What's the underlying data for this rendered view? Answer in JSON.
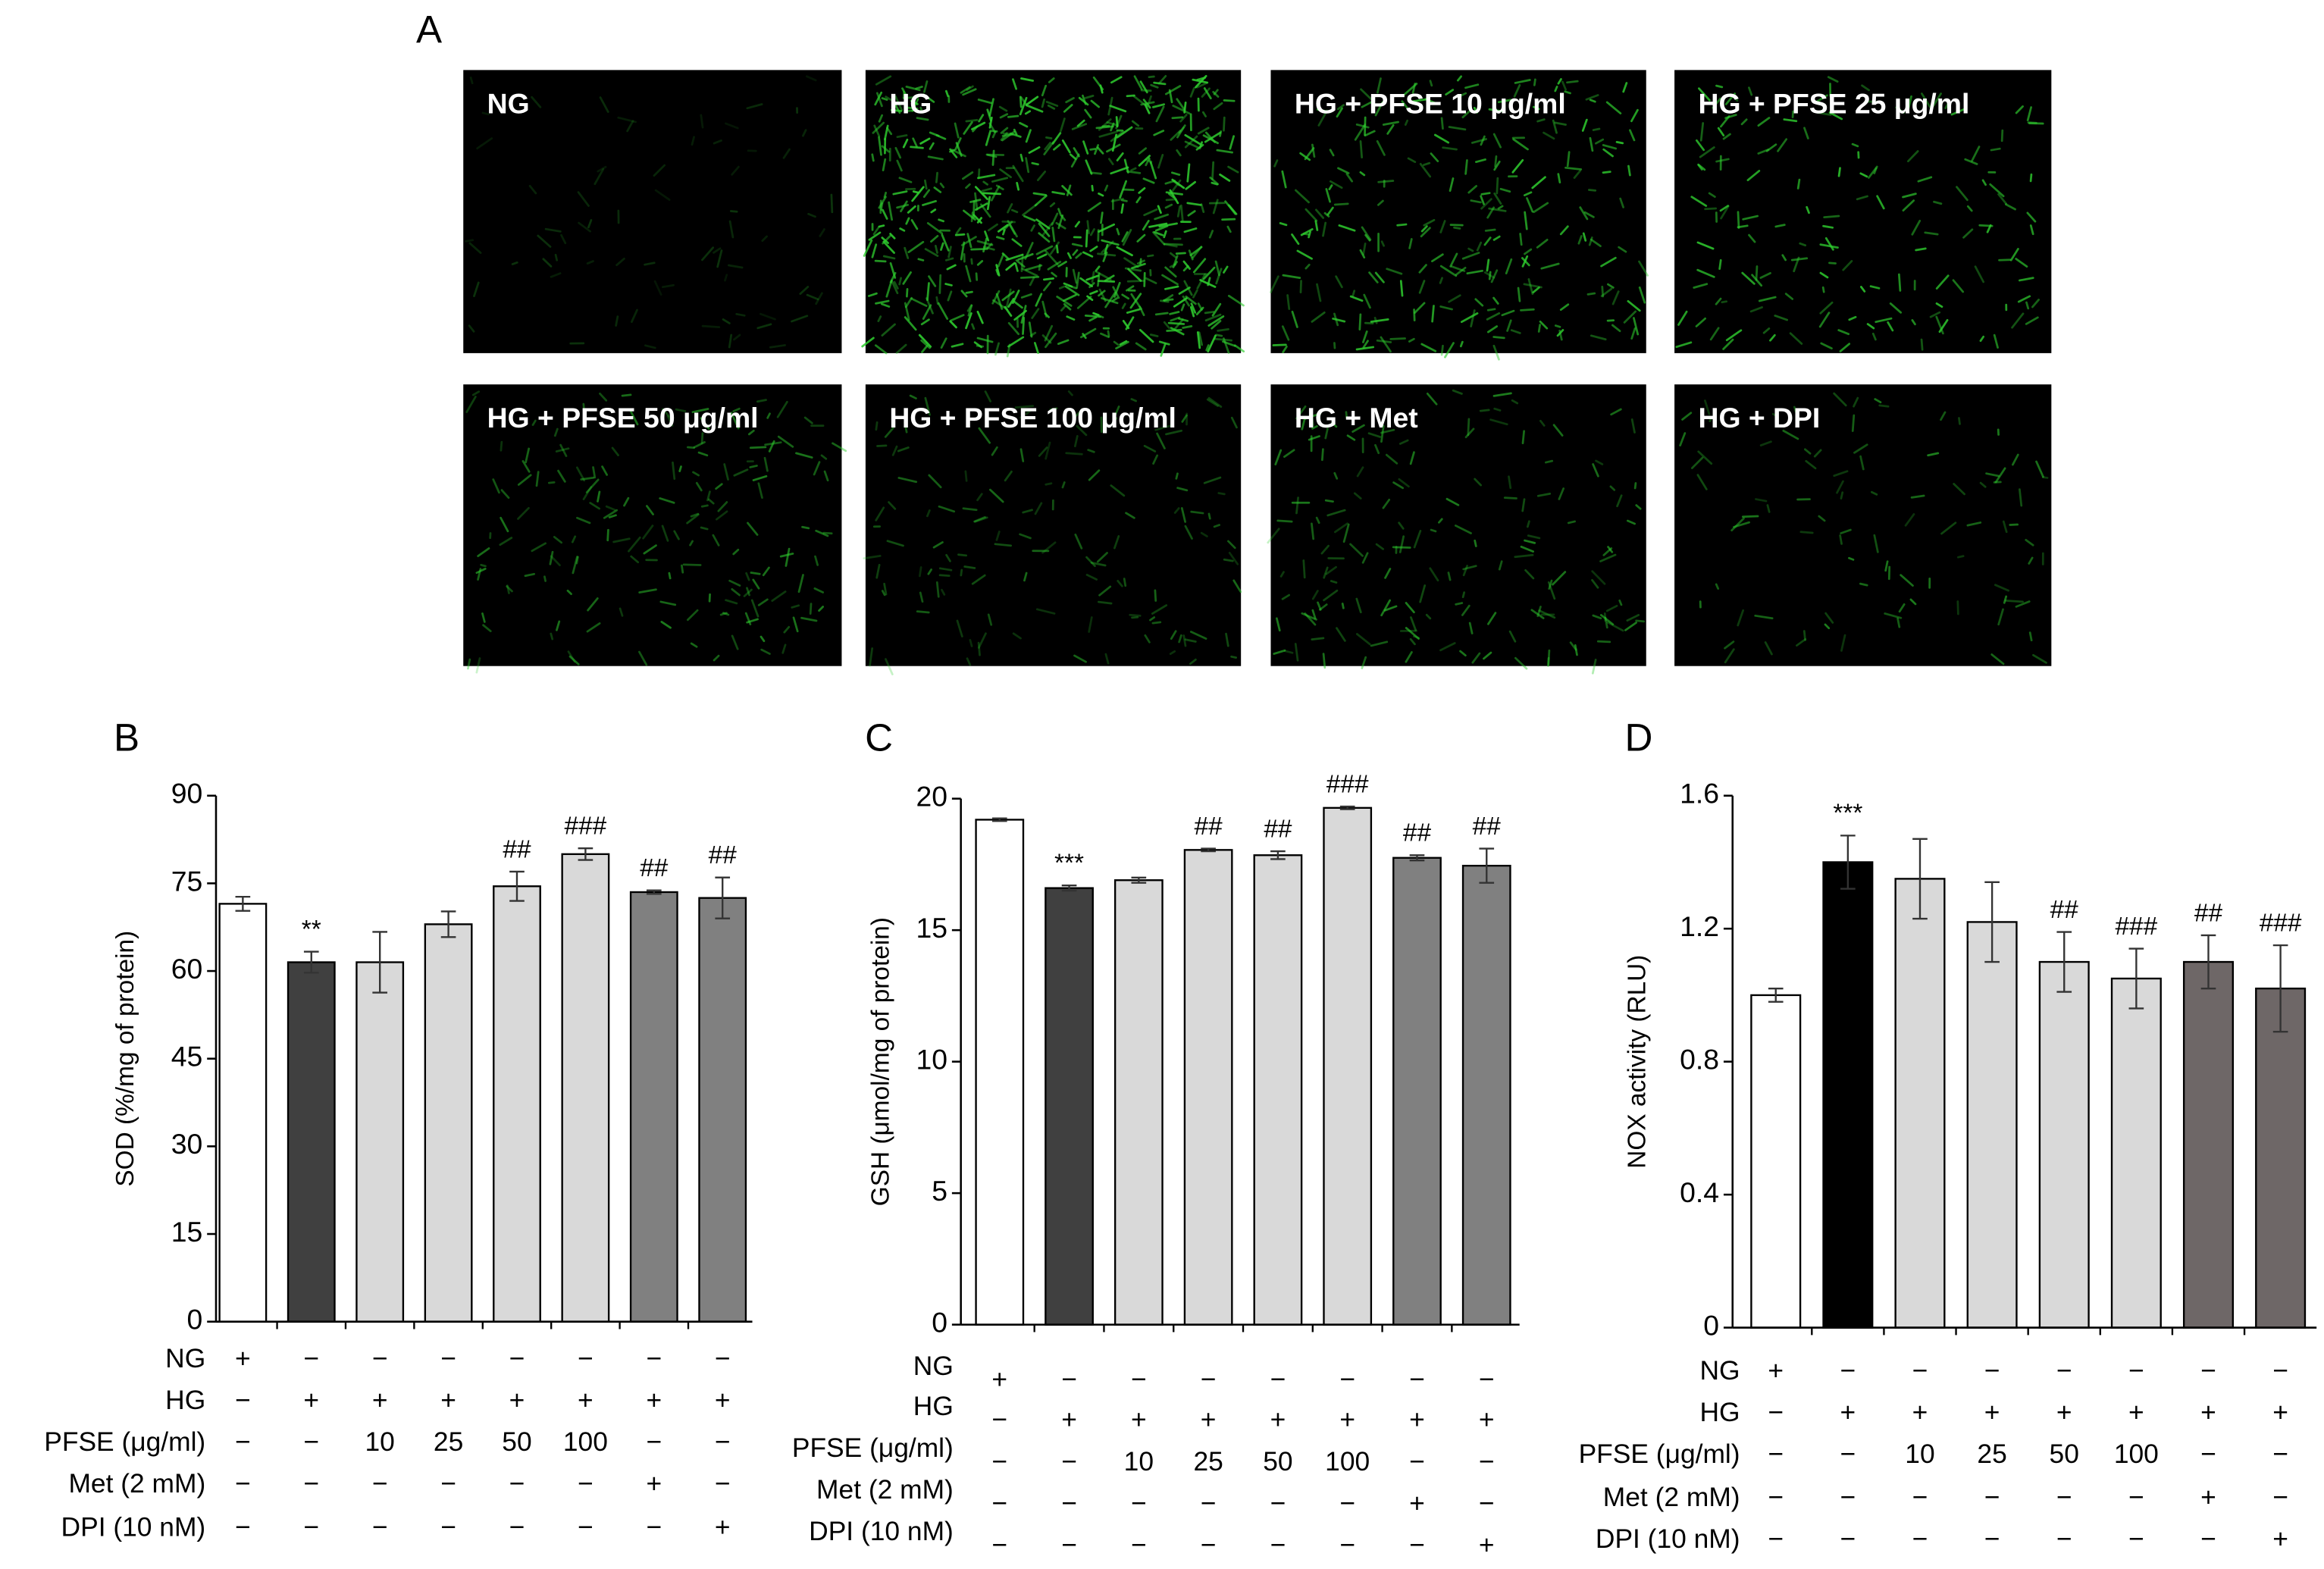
{
  "panel_a": {
    "letter": "A",
    "images": [
      "NG",
      "HG",
      "HG + PFSE 10 μg/ml",
      "HG + PFSE 25 μg/ml",
      "HG + PFSE 50 μg/ml",
      "HG + PFSE 100 μg/ml",
      "HG + Met",
      "HG + DPI"
    ]
  },
  "chart_data": [
    {
      "type": "bar",
      "panel": "B",
      "y_label": "SOD (%/mg of protein)",
      "values": [
        71.5,
        61.5,
        61.5,
        68,
        74.5,
        80,
        73.5,
        72.5
      ],
      "errors": [
        1.2,
        1.8,
        5.2,
        2.2,
        2.5,
        1,
        0.3,
        3.5
      ],
      "annotations": [
        null,
        "**",
        null,
        null,
        "##",
        "###",
        "##",
        "##"
      ],
      "colors": [
        "#ffffff",
        "#404040",
        "#d9d9d9",
        "#d9d9d9",
        "#d9d9d9",
        "#d9d9d9",
        "#808080",
        "#808080"
      ],
      "ylim": [
        0,
        90
      ],
      "yticks": [
        0,
        15,
        30,
        45,
        60,
        75,
        90
      ],
      "treatments": [
        {
          "label": "NG",
          "cells": [
            "+",
            "−",
            "−",
            "−",
            "−",
            "−",
            "−",
            "−"
          ]
        },
        {
          "label": "HG",
          "cells": [
            "−",
            "+",
            "+",
            "+",
            "+",
            "+",
            "+",
            "+"
          ]
        },
        {
          "label": "PFSE (μg/ml)",
          "cells": [
            "−",
            "−",
            "10",
            "25",
            "50",
            "100",
            "−",
            "−"
          ]
        },
        {
          "label": "Met (2 mM)",
          "cells": [
            "−",
            "−",
            "−",
            "−",
            "−",
            "−",
            "+",
            "−"
          ]
        },
        {
          "label": "DPI (10 nM)",
          "cells": [
            "−",
            "−",
            "−",
            "−",
            "−",
            "−",
            "−",
            "+"
          ]
        }
      ]
    },
    {
      "type": "bar",
      "panel": "C",
      "y_label": "GSH (μmol/mg of protein)",
      "values": [
        19.2,
        16.6,
        16.9,
        18.05,
        17.85,
        19.65,
        17.75,
        17.45
      ],
      "errors": [
        0.05,
        0.1,
        0.1,
        0.05,
        0.15,
        0.05,
        0.1,
        0.65
      ],
      "annotations": [
        null,
        "***",
        null,
        "##",
        "##",
        "###",
        "##",
        "##"
      ],
      "colors": [
        "#ffffff",
        "#404040",
        "#d9d9d9",
        "#d9d9d9",
        "#d9d9d9",
        "#d9d9d9",
        "#808080",
        "#808080"
      ],
      "ylim": [
        0,
        20
      ],
      "yticks": [
        0,
        5,
        10,
        15,
        20
      ],
      "treatments": [
        {
          "label": "NG",
          "cells": [
            "+",
            "−",
            "−",
            "−",
            "−",
            "−",
            "−",
            "−"
          ]
        },
        {
          "label": "HG",
          "cells": [
            "−",
            "+",
            "+",
            "+",
            "+",
            "+",
            "+",
            "+"
          ]
        },
        {
          "label": "PFSE (μg/ml)",
          "cells": [
            "−",
            "−",
            "10",
            "25",
            "50",
            "100",
            "−",
            "−"
          ]
        },
        {
          "label": "Met (2 mM)",
          "cells": [
            "−",
            "−",
            "−",
            "−",
            "−",
            "−",
            "+",
            "−"
          ]
        },
        {
          "label": "DPI (10 nM)",
          "cells": [
            "−",
            "−",
            "−",
            "−",
            "−",
            "−",
            "−",
            "+"
          ]
        }
      ]
    },
    {
      "type": "bar",
      "panel": "D",
      "y_label": "NOX activity (RLU)",
      "values": [
        1.0,
        1.4,
        1.35,
        1.22,
        1.1,
        1.05,
        1.1,
        1.02
      ],
      "errors": [
        0.02,
        0.08,
        0.12,
        0.12,
        0.09,
        0.09,
        0.08,
        0.13
      ],
      "annotations": [
        null,
        "***",
        null,
        null,
        "##",
        "###",
        "##",
        "###"
      ],
      "colors": [
        "#ffffff",
        "#000000",
        "#d9d9d9",
        "#d9d9d9",
        "#d9d9d9",
        "#d9d9d9",
        "#6e6767",
        "#6e6767"
      ],
      "ylim": [
        0,
        1.6
      ],
      "yticks": [
        0,
        0.4,
        0.8,
        1.2,
        1.6
      ],
      "treatments": [
        {
          "label": "NG",
          "cells": [
            "+",
            "−",
            "−",
            "−",
            "−",
            "−",
            "−",
            "−"
          ]
        },
        {
          "label": "HG",
          "cells": [
            "−",
            "+",
            "+",
            "+",
            "+",
            "+",
            "+",
            "+"
          ]
        },
        {
          "label": "PFSE (μg/ml)",
          "cells": [
            "−",
            "−",
            "10",
            "25",
            "50",
            "100",
            "−",
            "−"
          ]
        },
        {
          "label": "Met (2 mM)",
          "cells": [
            "−",
            "−",
            "−",
            "−",
            "−",
            "−",
            "+",
            "−"
          ]
        },
        {
          "label": "DPI (10 nM)",
          "cells": [
            "−",
            "−",
            "−",
            "−",
            "−",
            "−",
            "−",
            "+"
          ]
        }
      ]
    }
  ]
}
